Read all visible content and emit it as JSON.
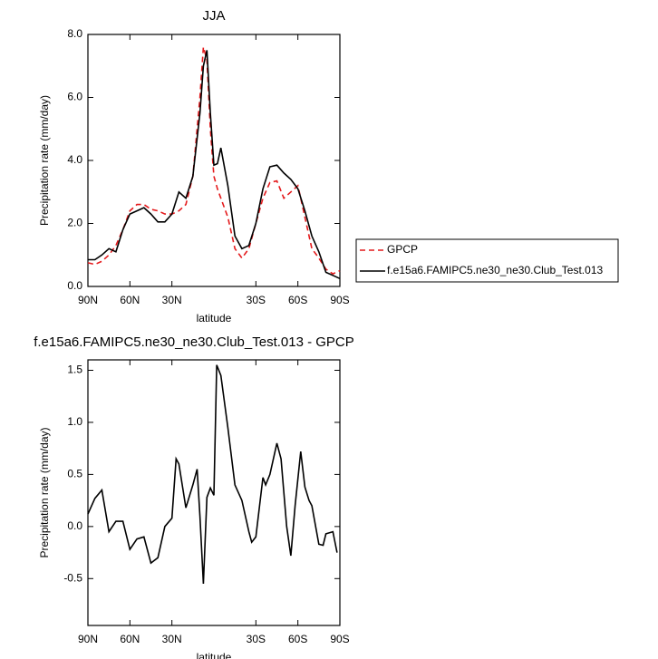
{
  "chart_data": [
    {
      "type": "line",
      "title": "JJA",
      "xlabel": "latitude",
      "ylabel": "Precipitation rate (mm/day)",
      "x": [
        90,
        85,
        80,
        75,
        70,
        65,
        60,
        55,
        50,
        45,
        40,
        35,
        30,
        25,
        20,
        15,
        10,
        7.5,
        5,
        2.5,
        0,
        -2.5,
        -5,
        -10,
        -15,
        -20,
        -25,
        -30,
        -35,
        -40,
        -45,
        -50,
        -55,
        -60,
        -65,
        -70,
        -75,
        -80,
        -85,
        -90
      ],
      "series": [
        {
          "name": "GPCP",
          "color": "#e41a1c",
          "linestyle": "dashed",
          "values": [
            0.75,
            0.7,
            0.8,
            1.0,
            1.3,
            1.8,
            2.4,
            2.6,
            2.6,
            2.45,
            2.4,
            2.3,
            2.3,
            2.4,
            2.6,
            3.5,
            6.0,
            7.6,
            7.2,
            5.0,
            3.5,
            3.1,
            2.8,
            2.2,
            1.2,
            0.9,
            1.2,
            2.0,
            2.8,
            3.3,
            3.35,
            2.8,
            3.0,
            3.2,
            2.2,
            1.2,
            0.9,
            0.55,
            0.4,
            0.5
          ]
        },
        {
          "name": "f.e15a6.FAMIPC5.ne30_ne30.Club_Test.013",
          "color": "#000000",
          "linestyle": "solid",
          "values": [
            0.85,
            0.85,
            1.0,
            1.2,
            1.1,
            1.8,
            2.3,
            2.4,
            2.5,
            2.3,
            2.05,
            2.05,
            2.3,
            3.0,
            2.8,
            3.5,
            5.5,
            7.0,
            7.5,
            5.5,
            3.85,
            3.9,
            4.4,
            3.2,
            1.6,
            1.2,
            1.3,
            2.0,
            3.1,
            3.8,
            3.85,
            3.6,
            3.4,
            3.1,
            2.4,
            1.6,
            1.1,
            0.45,
            0.35,
            0.25
          ]
        }
      ],
      "xlim": [
        90,
        -90
      ],
      "xticks": [
        {
          "value": 90,
          "label": "90N"
        },
        {
          "value": 60,
          "label": "60N"
        },
        {
          "value": 30,
          "label": "30N"
        },
        {
          "value": -30,
          "label": "30S"
        },
        {
          "value": -60,
          "label": "60S"
        },
        {
          "value": -90,
          "label": "90S"
        }
      ],
      "ylim": [
        0,
        8
      ],
      "yticks": [
        {
          "value": 0,
          "label": "0.0"
        },
        {
          "value": 2,
          "label": "2.0"
        },
        {
          "value": 4,
          "label": "4.0"
        },
        {
          "value": 6,
          "label": "6.0"
        },
        {
          "value": 8,
          "label": "8.0"
        }
      ],
      "legend": "outside-right"
    },
    {
      "type": "line",
      "title": "f.e15a6.FAMIPC5.ne30_ne30.Club_Test.013 - GPCP",
      "xlabel": "latitude",
      "ylabel": "Precipitation rate (mm/day)",
      "x": [
        90,
        85,
        80,
        75,
        70,
        65,
        60,
        55,
        50,
        45,
        40,
        35,
        30,
        27,
        25,
        20,
        15,
        12,
        10,
        7.5,
        5,
        2.5,
        0,
        -2,
        -5,
        -10,
        -15,
        -20,
        -25,
        -27,
        -30,
        -35,
        -37,
        -40,
        -45,
        -48,
        -52,
        -55,
        -58,
        -62,
        -65,
        -68,
        -70,
        -75,
        -78,
        -80,
        -85,
        -88
      ],
      "color": "#000000",
      "values": [
        0.12,
        0.27,
        0.35,
        -0.05,
        0.05,
        0.05,
        -0.22,
        -0.12,
        -0.1,
        -0.35,
        -0.3,
        0.0,
        0.08,
        0.65,
        0.6,
        0.18,
        0.4,
        0.55,
        0.1,
        -0.55,
        0.28,
        0.37,
        0.3,
        1.55,
        1.45,
        0.95,
        0.4,
        0.25,
        -0.05,
        -0.15,
        -0.1,
        0.47,
        0.4,
        0.5,
        0.8,
        0.65,
        0.0,
        -0.28,
        0.2,
        0.72,
        0.38,
        0.25,
        0.2,
        -0.17,
        -0.18,
        -0.07,
        -0.05,
        -0.25
      ],
      "xlim": [
        90,
        -90
      ],
      "xticks": [
        {
          "value": 90,
          "label": "90N"
        },
        {
          "value": 60,
          "label": "60N"
        },
        {
          "value": 30,
          "label": "30N"
        },
        {
          "value": -30,
          "label": "30S"
        },
        {
          "value": -60,
          "label": "60S"
        },
        {
          "value": -90,
          "label": "90S"
        }
      ],
      "ylim": [
        -0.95,
        1.6
      ],
      "yticks": [
        -0.5,
        {
          "value": 0,
          "label": "0.0"
        },
        0.5,
        {
          "value": 1,
          "label": "1.0"
        },
        1.5
      ]
    }
  ]
}
